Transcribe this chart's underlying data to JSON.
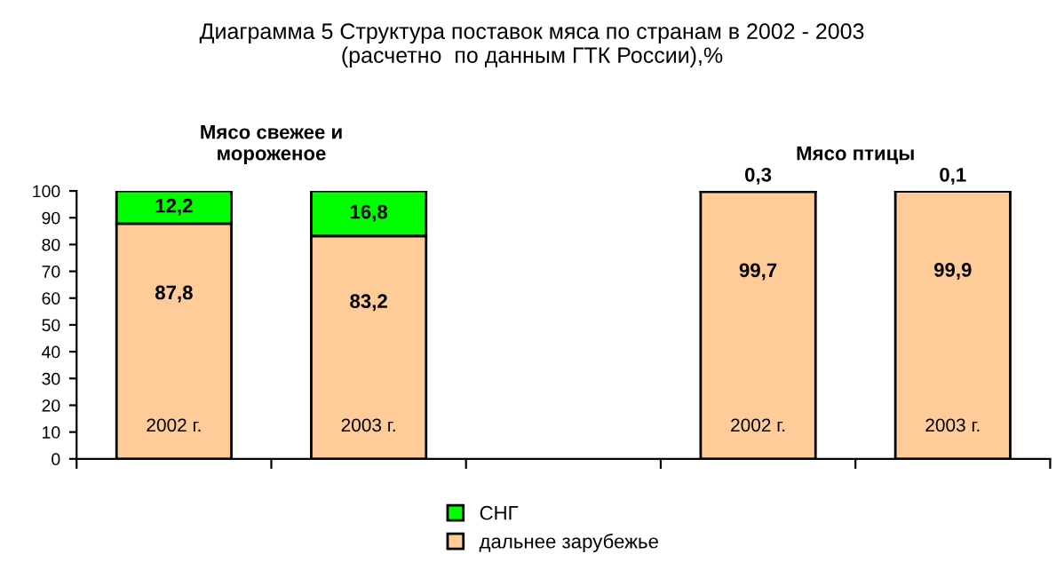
{
  "chart_data": {
    "type": "bar",
    "stacked": true,
    "title": "Диаграмма 5 Структура поставок мяса по странам в 2002 - 2003\n(расчетно  по данным ГТК России),%",
    "categories": [
      "2002 г.",
      "2003 г.",
      null,
      "2002 г.",
      "2003 г."
    ],
    "series": [
      {
        "name": "дальнее зарубежье",
        "color": "#ffcc99",
        "values": [
          87.8,
          83.2,
          null,
          99.7,
          99.9
        ],
        "value_labels": [
          "87,8",
          "83,2",
          null,
          "99,7",
          "99,9"
        ]
      },
      {
        "name": "СНГ",
        "color": "#00ff00",
        "values": [
          12.2,
          16.8,
          null,
          0.3,
          0.1
        ],
        "value_labels": [
          "12,2",
          "16,8",
          null,
          "0,3",
          "0,1"
        ]
      }
    ],
    "annotations": [
      "Мясо свежее и\nмороженое",
      "Мясо птицы"
    ],
    "ylim": [
      0,
      100
    ],
    "yticks": [
      0,
      10,
      20,
      30,
      40,
      50,
      60,
      70,
      80,
      90,
      100
    ],
    "grid": false,
    "legend": "bottom"
  }
}
